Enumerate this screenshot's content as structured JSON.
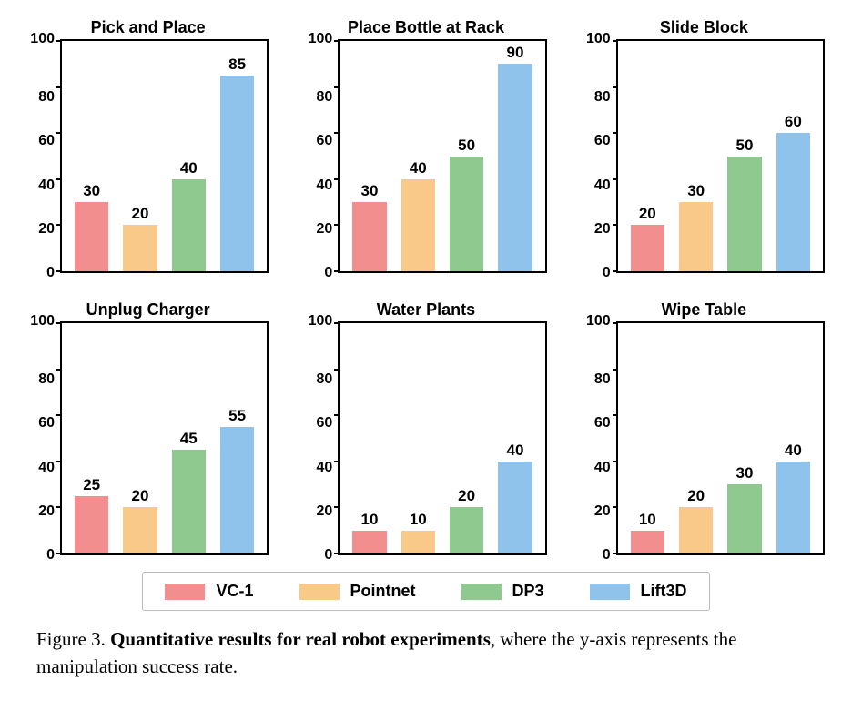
{
  "figure": {
    "type": "bar-grid",
    "rows": 2,
    "cols": 3,
    "ylim": [
      0,
      100
    ],
    "ytick_step": 20,
    "yticks": [
      0,
      20,
      40,
      60,
      80,
      100
    ],
    "bar_width": 0.7,
    "background_color": "#ffffff",
    "border_color": "#000000",
    "label_fontsize": 17,
    "title_fontsize": 18,
    "tick_fontsize": 16,
    "font_family": "Arial, sans-serif",
    "caption_font_family": "Times New Roman, serif"
  },
  "series": [
    {
      "name": "VC-1",
      "color": "#f28e8e"
    },
    {
      "name": "Pointnet",
      "color": "#f9c98a"
    },
    {
      "name": "DP3",
      "color": "#8fc98f"
    },
    {
      "name": "Lift3D",
      "color": "#8fc3ec"
    }
  ],
  "panels": [
    {
      "title": "Pick and Place",
      "values": [
        30,
        20,
        40,
        85
      ]
    },
    {
      "title": "Place Bottle at Rack",
      "values": [
        30,
        40,
        50,
        90
      ]
    },
    {
      "title": "Slide Block",
      "values": [
        20,
        30,
        50,
        60
      ]
    },
    {
      "title": "Unplug Charger",
      "values": [
        25,
        20,
        45,
        55
      ]
    },
    {
      "title": "Water Plants",
      "values": [
        10,
        10,
        20,
        40
      ]
    },
    {
      "title": "Wipe Table",
      "values": [
        10,
        20,
        30,
        40
      ]
    }
  ],
  "caption": {
    "prefix": "Figure 3. ",
    "bold": "Quantitative results for real robot experiments",
    "rest": ", where the y-axis represents the manipulation success rate."
  }
}
